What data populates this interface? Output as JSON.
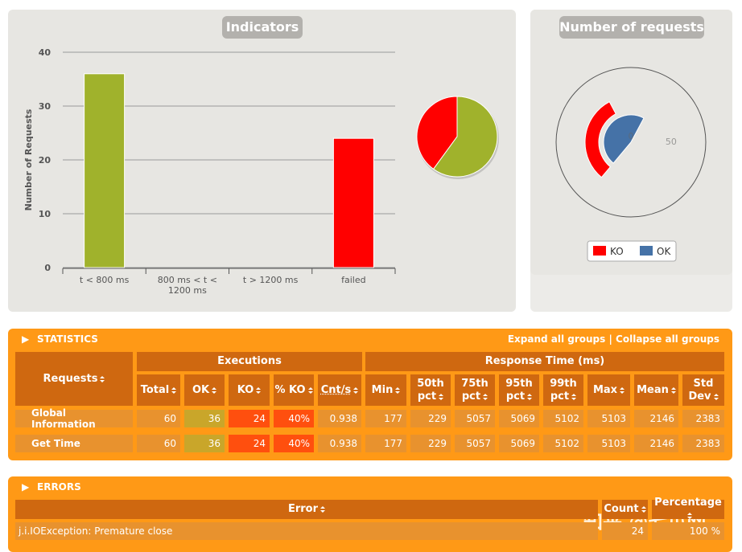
{
  "chart_data": [
    {
      "type": "bar",
      "title": "Indicators",
      "y_label": "Number of Requests",
      "categories": [
        "t < 800 ms",
        "800 ms < t < 1200 ms",
        "t > 1200 ms",
        "failed"
      ],
      "values": [
        36,
        0,
        0,
        24
      ],
      "colors": [
        "#a0b22c",
        "#f7c62a",
        "#ff9916",
        "#ff0000"
      ],
      "ylim": [
        0,
        40
      ],
      "yticks": [
        0,
        10,
        20,
        30,
        40
      ],
      "grid": true
    },
    {
      "type": "pie",
      "values": [
        24,
        36
      ],
      "colors": [
        "#ff0000",
        "#a0b22c"
      ]
    },
    {
      "type": "gauge",
      "title": "Number of requests",
      "ylim": [
        0,
        60
      ],
      "yticks": [
        0,
        50
      ],
      "series": [
        {
          "name": "KO",
          "color": "#ff0000",
          "values": [
            24
          ]
        },
        {
          "name": "OK",
          "color": "#4572a7",
          "values": [
            36
          ]
        }
      ]
    }
  ],
  "statistics": {
    "title": "STATISTICS",
    "expand": "Expand all groups",
    "separator": "|",
    "collapse": "Collapse all groups",
    "groups": [
      "Executions",
      "Response Time (ms)"
    ],
    "columns": [
      "Requests",
      "Total",
      "OK",
      "KO",
      "% KO",
      "Cnt/s",
      "Min",
      "50th pct",
      "75th pct",
      "95th pct",
      "99th pct",
      "Max",
      "Mean",
      "Std Dev"
    ],
    "rows": [
      [
        "Global Information",
        "60",
        "36",
        "24",
        "40%",
        "0.938",
        "177",
        "229",
        "5057",
        "5069",
        "5102",
        "5103",
        "2146",
        "2383"
      ],
      [
        "Get Time",
        "60",
        "36",
        "24",
        "40%",
        "0.938",
        "177",
        "229",
        "5057",
        "5069",
        "5102",
        "5103",
        "2146",
        "2383"
      ]
    ]
  },
  "errors": {
    "title": "ERRORS",
    "columns": [
      "Error",
      "Count",
      "Percentage"
    ],
    "rows": [
      [
        "j.i.IOException: Premature close",
        "24",
        "100 %"
      ]
    ]
  },
  "watermark": "知乎 @七爪网"
}
